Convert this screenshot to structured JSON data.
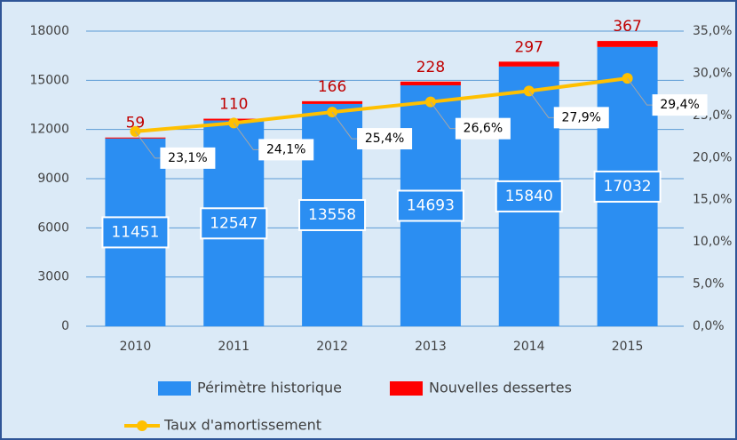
{
  "chart_data": {
    "type": "bar-line",
    "categories": [
      "2010",
      "2011",
      "2012",
      "2013",
      "2014",
      "2015"
    ],
    "series": [
      {
        "name": "Périmètre historique",
        "type": "bar",
        "color": "#2b8ef2",
        "values": [
          11451,
          12547,
          13558,
          14693,
          15840,
          17032
        ]
      },
      {
        "name": "Nouvelles dessertes",
        "type": "bar",
        "color": "#ff0000",
        "values": [
          59,
          110,
          166,
          228,
          297,
          367
        ]
      },
      {
        "name": "Taux d'amortissement",
        "type": "line",
        "axis": "y2",
        "color": "#ffc000",
        "values": [
          23.1,
          24.1,
          25.4,
          26.6,
          27.9,
          29.4
        ],
        "value_labels": [
          "23,1%",
          "24,1%",
          "25,4%",
          "26,6%",
          "27,9%",
          "29,4%"
        ]
      }
    ],
    "stacked": true,
    "ylim": [
      0,
      18000
    ],
    "yticks": [
      0,
      3000,
      6000,
      9000,
      12000,
      15000,
      18000
    ],
    "y2lim": [
      0,
      35
    ],
    "y2ticks": [
      {
        "value": 0,
        "label": "0,0%"
      },
      {
        "value": 5,
        "label": "5,0%"
      },
      {
        "value": 10,
        "label": "10,0%"
      },
      {
        "value": 15,
        "label": "15,0%"
      },
      {
        "value": 20,
        "label": "20,0%"
      },
      {
        "value": 25,
        "label": "25,0%"
      },
      {
        "value": 30,
        "label": "30,0%"
      },
      {
        "value": 35,
        "label": "35,0%"
      }
    ],
    "grid": true
  }
}
